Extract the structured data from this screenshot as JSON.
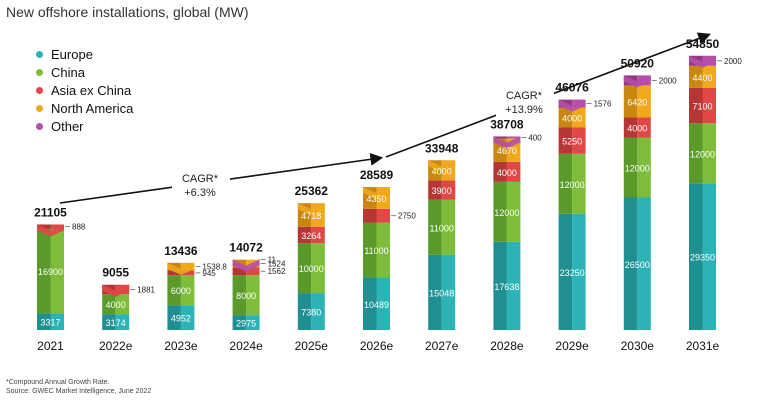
{
  "title": "New offshore installations, global (MW)",
  "footnote": {
    "line1": "*Compound Annual Growth Rate.",
    "line2": "Source: GWEC Market Intelligence, June 2022"
  },
  "colors": {
    "Europe": "#2bb3b5",
    "China": "#7dbd3a",
    "Asia ex China": "#e04848",
    "North America": "#f0a81c",
    "Other": "#b54fa8"
  },
  "cagr": [
    {
      "label": "CAGR*",
      "value": "+6.3%"
    },
    {
      "label": "CAGR*",
      "value": "+13.9%"
    }
  ],
  "chart_data": {
    "type": "bar",
    "stacked": true,
    "title": "New offshore installations, global (MW)",
    "categories": [
      "2021",
      "2022e",
      "2023e",
      "2024e",
      "2025e",
      "2026e",
      "2027e",
      "2028e",
      "2029e",
      "2030e",
      "2031e"
    ],
    "totals": [
      "21105",
      "9055",
      "13436",
      "14072",
      "25362",
      "28589",
      "33948",
      "38708",
      "46076",
      "50920",
      "54850"
    ],
    "series": [
      {
        "name": "Europe",
        "values": [
          3317,
          3174,
          4952,
          2975,
          7380,
          10489,
          15048,
          17638,
          23250,
          26500,
          29350
        ],
        "labels": [
          "3317",
          "3174",
          "4952",
          "2975",
          "7380",
          "10489",
          "15048",
          "17638",
          "23250",
          "26500",
          "29350"
        ]
      },
      {
        "name": "China",
        "values": [
          16900,
          4000,
          6000,
          8000,
          10000,
          11000,
          11000,
          12000,
          12000,
          12000,
          12000
        ],
        "labels": [
          "16900",
          "4000",
          "6000",
          "8000",
          "10000",
          "11000",
          "11000",
          "12000",
          "12000",
          "12000",
          "12000"
        ]
      },
      {
        "name": "Asia ex China",
        "values": [
          888,
          1881,
          945,
          1562,
          3264,
          2750,
          3900,
          4000,
          5250,
          4000,
          7100
        ],
        "labels": [
          "888",
          "1881",
          "945",
          "1562",
          "3264",
          "2750",
          "3900",
          "4000",
          "5250",
          "4000",
          "7100"
        ]
      },
      {
        "name": "North America",
        "values": [
          0,
          0,
          1538.8,
          1524,
          4718,
          4350,
          4000,
          4670,
          4000,
          6420,
          4400
        ],
        "labels": [
          "",
          "",
          "1538.8",
          "1524",
          "4718",
          "4350",
          "4000",
          "4670",
          "4000",
          "6420",
          "4400"
        ]
      },
      {
        "name": "Other",
        "values": [
          0,
          0,
          0,
          11,
          0,
          0,
          0,
          400,
          1576,
          2000,
          2000
        ],
        "labels": [
          "",
          "",
          "",
          "11",
          "",
          "",
          "",
          "400",
          "1576",
          "2000",
          "2000"
        ]
      }
    ],
    "legend_position": "top-left"
  }
}
